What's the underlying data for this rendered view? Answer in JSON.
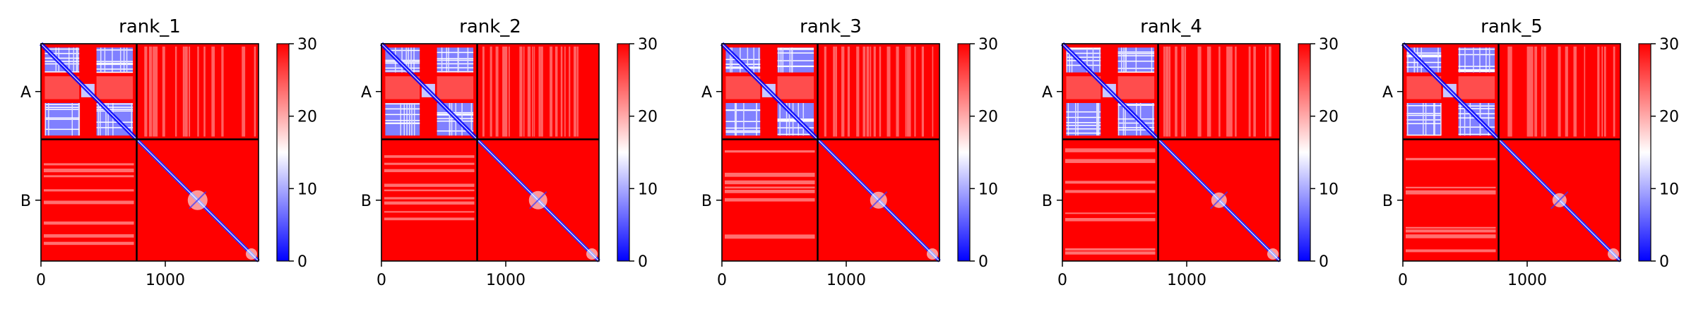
{
  "chart_data": {
    "type": "heatmap",
    "description_colorscale": "bwr",
    "colors": {
      "low": "#0000ff",
      "mid": "#ffffff",
      "high": "#ff0000",
      "divider": "#000000"
    },
    "color_range": [
      0,
      30
    ],
    "colorbar_ticks": [
      "0",
      "10",
      "20",
      "30"
    ],
    "x_ticks": [
      {
        "value": 0,
        "label": "0"
      },
      {
        "value": 1000,
        "label": "1000"
      }
    ],
    "xlim": [
      0,
      1750
    ],
    "chains": [
      {
        "label": "A",
        "start": 0,
        "end": 770
      },
      {
        "label": "B",
        "start": 770,
        "end": 1750
      }
    ],
    "grid": false,
    "panels": [
      {
        "title": "rank_1"
      },
      {
        "title": "rank_2"
      },
      {
        "title": "rank_3"
      },
      {
        "title": "rank_4"
      },
      {
        "title": "rank_5"
      }
    ]
  }
}
